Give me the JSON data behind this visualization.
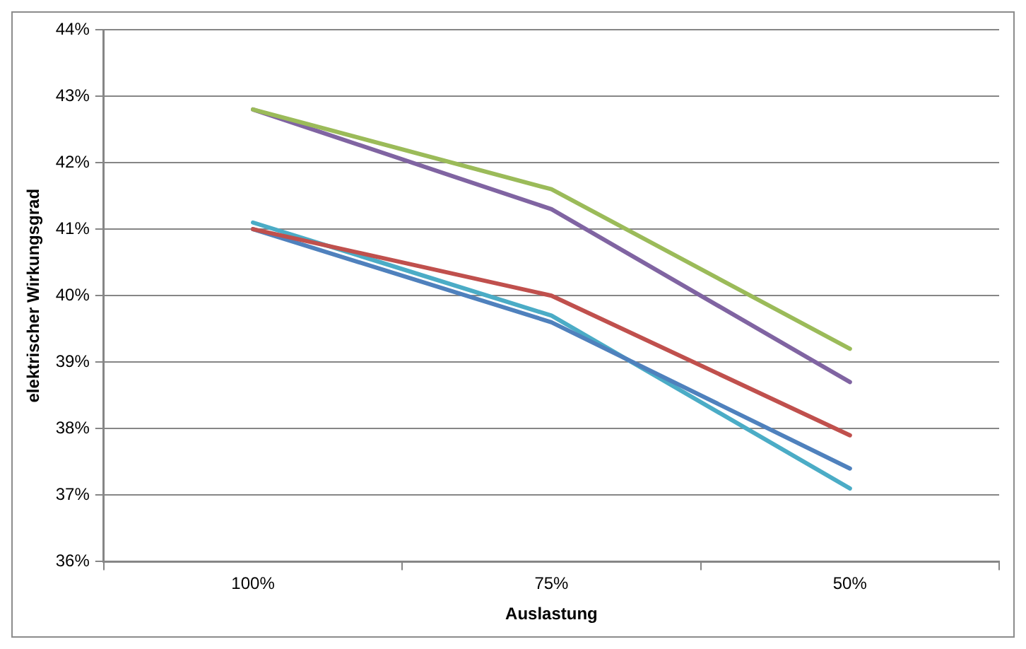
{
  "chart_data": {
    "type": "line",
    "xlabel": "Auslastung",
    "ylabel": "elektrischer Wirkungsgrad",
    "categories": [
      "100%",
      "75%",
      "50%"
    ],
    "series": [
      {
        "color": "#9bbb59",
        "values": [
          42.8,
          41.6,
          39.2
        ]
      },
      {
        "color": "#8064a2",
        "values": [
          42.8,
          41.3,
          38.7
        ]
      },
      {
        "color": "#c0504d",
        "values": [
          41.0,
          40.0,
          37.9
        ]
      },
      {
        "color": "#4f81bd",
        "values": [
          41.0,
          39.6,
          37.4
        ]
      },
      {
        "color": "#4bacc6",
        "values": [
          41.1,
          39.7,
          37.1
        ]
      }
    ],
    "ylim": [
      36,
      44
    ],
    "yticks": [
      {
        "value": 36,
        "label": "36%"
      },
      {
        "value": 37,
        "label": "37%"
      },
      {
        "value": 38,
        "label": "38%"
      },
      {
        "value": 39,
        "label": "39%"
      },
      {
        "value": 40,
        "label": "40%"
      },
      {
        "value": 41,
        "label": "41%"
      },
      {
        "value": 42,
        "label": "42%"
      },
      {
        "value": 43,
        "label": "43%"
      },
      {
        "value": 44,
        "label": "44%"
      }
    ],
    "grid": "y",
    "legend": false,
    "marker": "none",
    "line_style": "solid"
  }
}
